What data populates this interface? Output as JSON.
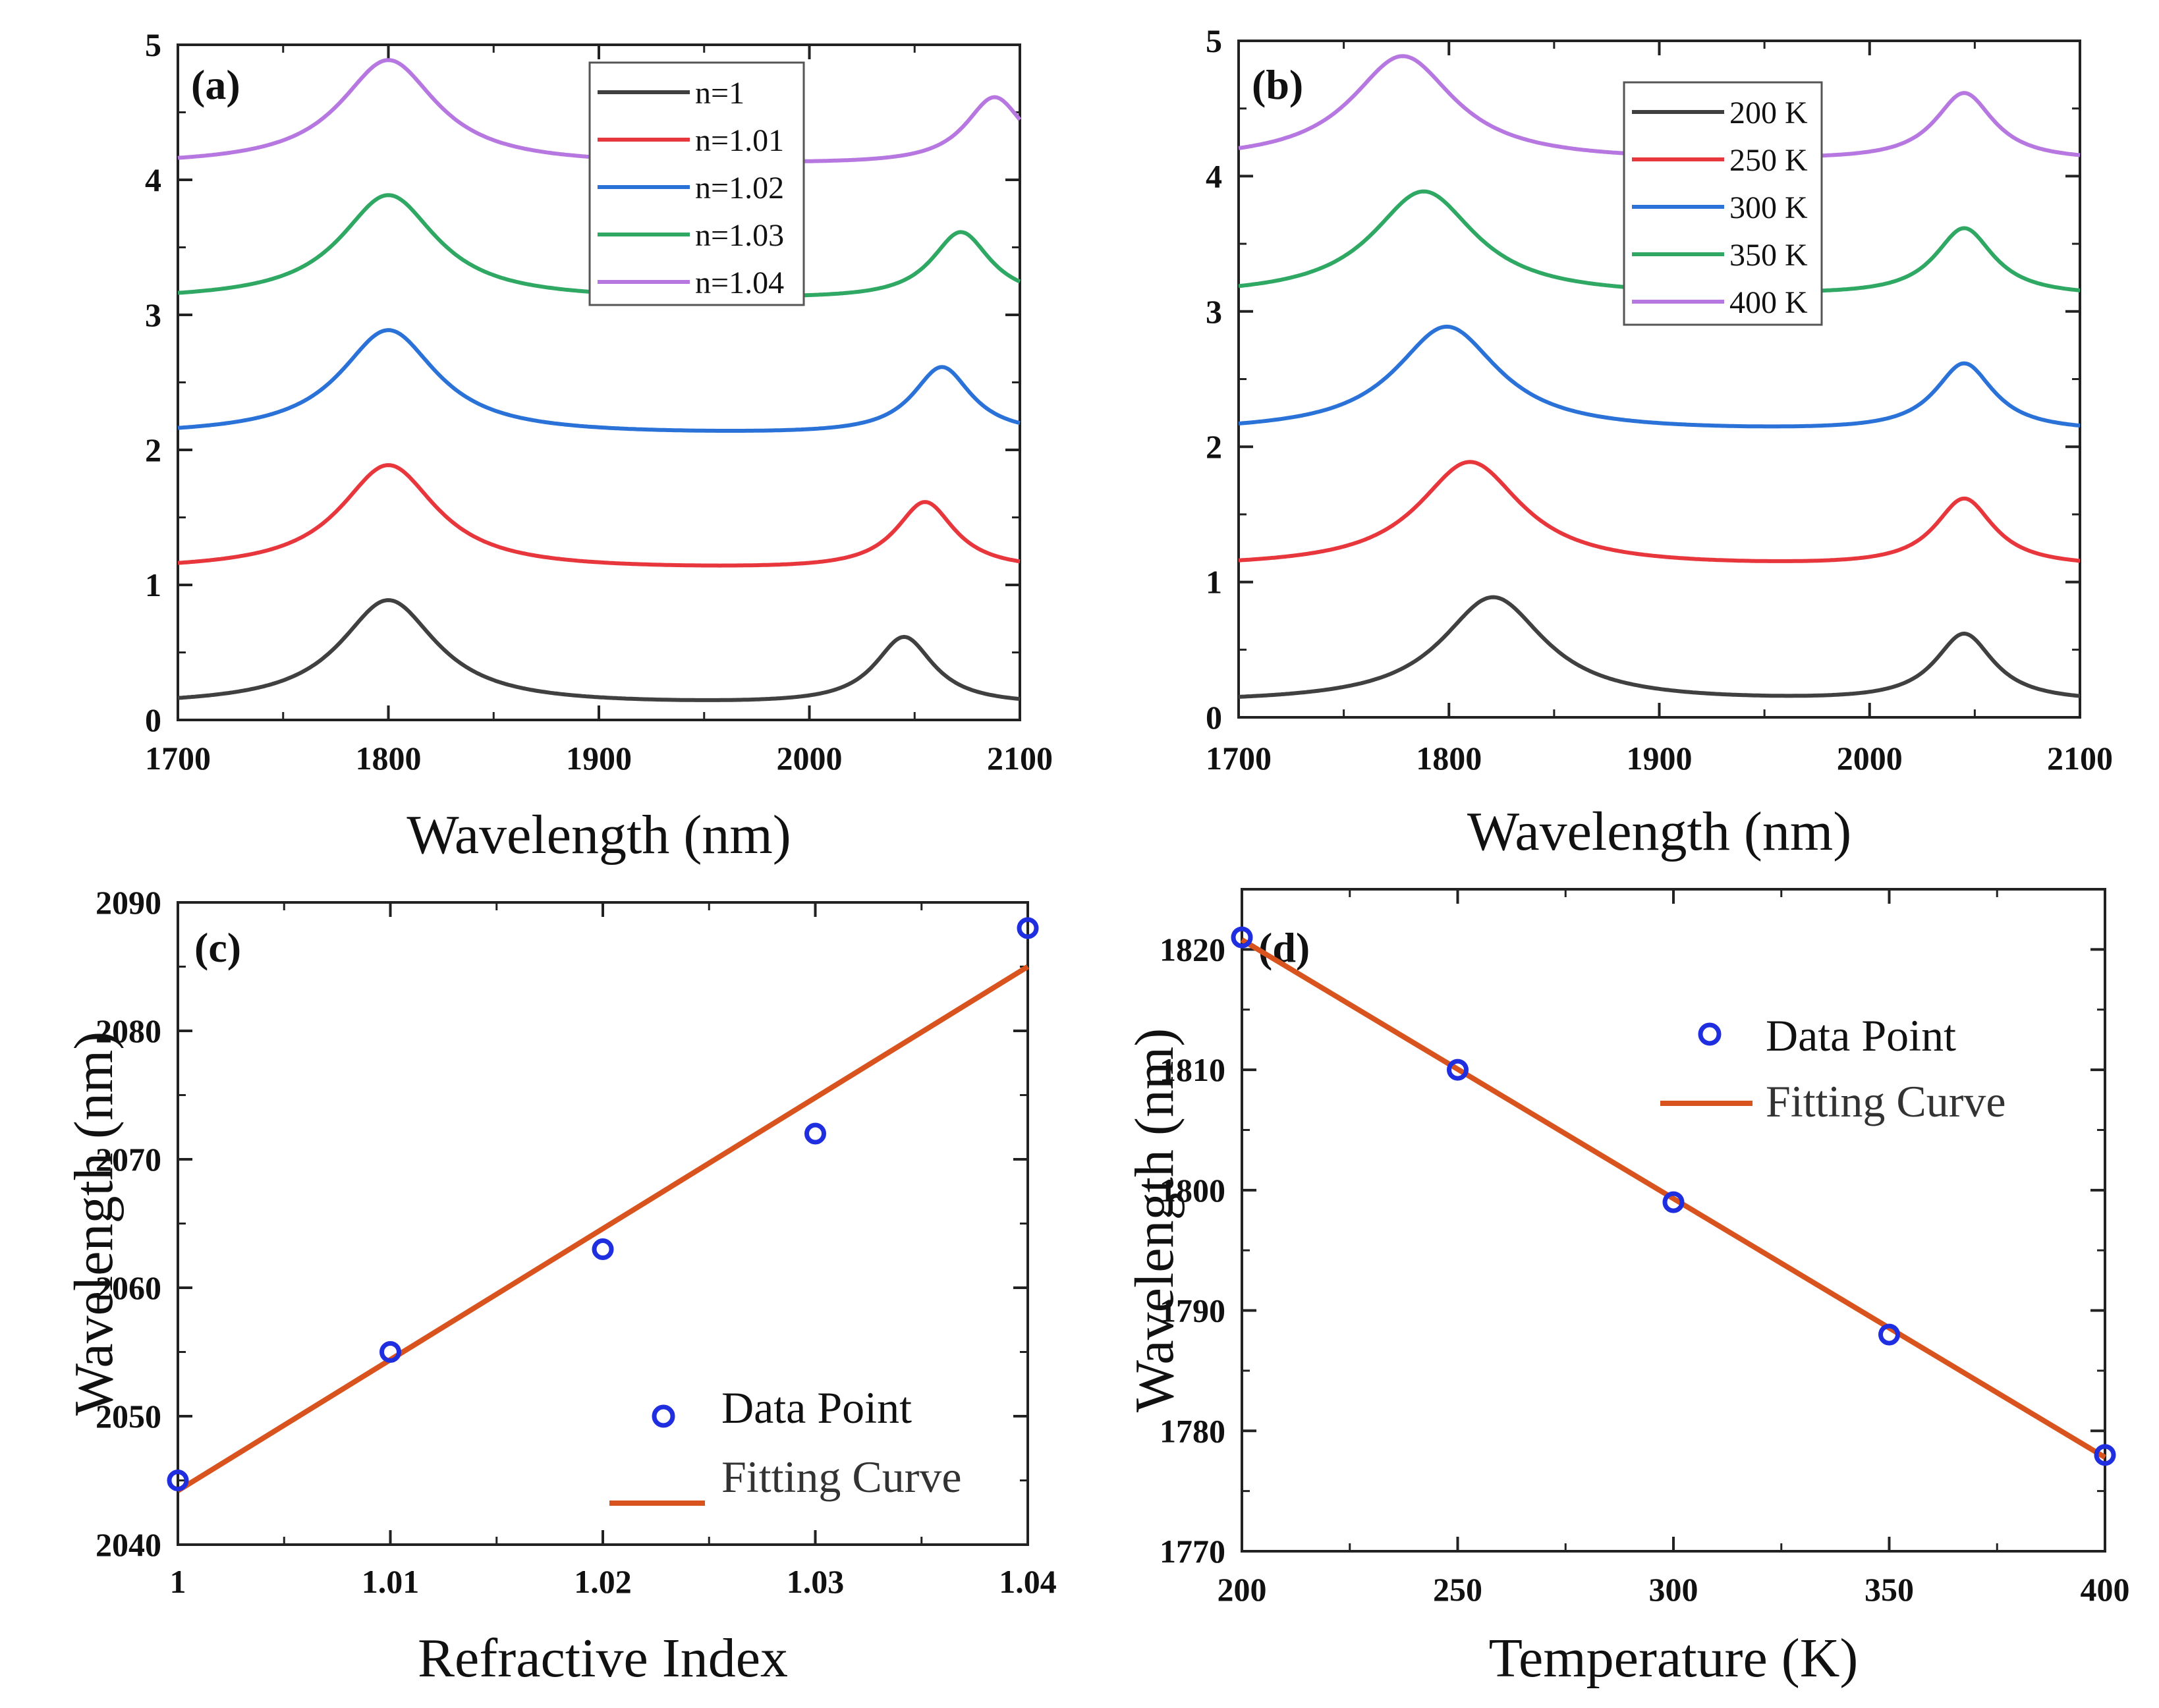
{
  "chart_data": [
    {
      "panel": "(a)",
      "type": "line",
      "xlabel": "Wavelength (nm)",
      "ylabel": "",
      "xlim": [
        1700,
        2100
      ],
      "ylim": [
        0,
        5
      ],
      "x_ticks": [
        "1700",
        "1800",
        "1900",
        "2000",
        "2100"
      ],
      "y_ticks": [
        "0",
        "1",
        "2",
        "3",
        "4",
        "5"
      ],
      "legend_position": "top-right",
      "series": [
        {
          "name": "n=1",
          "color": "#404040",
          "offset": 0,
          "peak1": {
            "x": 1800,
            "amp": 0.78,
            "width": 28
          },
          "peak2": {
            "x": 2045,
            "amp": 0.5,
            "width": 17
          },
          "base": 0.105
        },
        {
          "name": "n=1.01",
          "color": "#e8373c",
          "offset": 1,
          "peak1": {
            "x": 1800,
            "amp": 0.78,
            "width": 28
          },
          "peak2": {
            "x": 2055,
            "amp": 0.5,
            "width": 17
          },
          "base": 0.105
        },
        {
          "name": "n=1.02",
          "color": "#2a72d8",
          "offset": 2,
          "peak1": {
            "x": 1800,
            "amp": 0.78,
            "width": 28
          },
          "peak2": {
            "x": 2063,
            "amp": 0.5,
            "width": 17
          },
          "base": 0.105
        },
        {
          "name": "n=1.03",
          "color": "#2fa864",
          "offset": 3,
          "peak1": {
            "x": 1800,
            "amp": 0.78,
            "width": 28
          },
          "peak2": {
            "x": 2072,
            "amp": 0.5,
            "width": 17
          },
          "base": 0.105
        },
        {
          "name": "n=1.04",
          "color": "#b678e0",
          "offset": 4,
          "peak1": {
            "x": 1800,
            "amp": 0.78,
            "width": 28
          },
          "peak2": {
            "x": 2088,
            "amp": 0.5,
            "width": 17
          },
          "base": 0.105
        }
      ]
    },
    {
      "panel": "(b)",
      "type": "line",
      "xlabel": "Wavelength (nm)",
      "ylabel": "",
      "xlim": [
        1700,
        2100
      ],
      "ylim": [
        0,
        5
      ],
      "x_ticks": [
        "1700",
        "1800",
        "1900",
        "2000",
        "2100"
      ],
      "y_ticks": [
        "0",
        "1",
        "2",
        "3",
        "4",
        "5"
      ],
      "legend_position": "top-center",
      "series": [
        {
          "name": "200 K",
          "color": "#404040",
          "offset": 0,
          "peak1": {
            "x": 1821,
            "amp": 0.78,
            "width": 30
          },
          "peak2": {
            "x": 2045,
            "amp": 0.5,
            "width": 17
          },
          "base": 0.105
        },
        {
          "name": "250 K",
          "color": "#e8373c",
          "offset": 1,
          "peak1": {
            "x": 1810,
            "amp": 0.78,
            "width": 30
          },
          "peak2": {
            "x": 2045,
            "amp": 0.5,
            "width": 17
          },
          "base": 0.105
        },
        {
          "name": "300 K",
          "color": "#2a72d8",
          "offset": 2,
          "peak1": {
            "x": 1799,
            "amp": 0.78,
            "width": 30
          },
          "peak2": {
            "x": 2045,
            "amp": 0.5,
            "width": 17
          },
          "base": 0.105
        },
        {
          "name": "350 K",
          "color": "#2fa864",
          "offset": 3,
          "peak1": {
            "x": 1788,
            "amp": 0.78,
            "width": 30
          },
          "peak2": {
            "x": 2045,
            "amp": 0.5,
            "width": 17
          },
          "base": 0.105
        },
        {
          "name": "400 K",
          "color": "#b678e0",
          "offset": 4,
          "peak1": {
            "x": 1778,
            "amp": 0.78,
            "width": 30
          },
          "peak2": {
            "x": 2045,
            "amp": 0.5,
            "width": 17
          },
          "base": 0.105
        }
      ]
    },
    {
      "panel": "(c)",
      "type": "scatter",
      "xlabel": "Refractive Index",
      "ylabel": "Wavelength (nm)",
      "xlim": [
        1.0,
        1.04
      ],
      "ylim": [
        2040,
        2090
      ],
      "x_ticks": [
        "1",
        "1.01",
        "1.02",
        "1.03",
        "1.04"
      ],
      "y_ticks": [
        "2040",
        "2050",
        "2060",
        "2070",
        "2080",
        "2090"
      ],
      "legend_position": "bottom-right",
      "points": {
        "name": "Data Point",
        "color": "#1f2fe0",
        "x": [
          1.0,
          1.01,
          1.02,
          1.03,
          1.04
        ],
        "y": [
          2045,
          2055,
          2063,
          2072,
          2088
        ]
      },
      "fit": {
        "name": "Fitting Curve",
        "color": "#d9531e",
        "x": [
          1.0,
          1.04
        ],
        "y": [
          2044.2,
          2085.0
        ]
      }
    },
    {
      "panel": "(d)",
      "type": "scatter",
      "xlabel": "Temperature (K)",
      "ylabel": "Wavelength (nm)",
      "xlim": [
        200,
        400
      ],
      "ylim": [
        1770,
        1825
      ],
      "x_ticks": [
        "200",
        "250",
        "300",
        "350",
        "400"
      ],
      "y_ticks": [
        "1770",
        "1780",
        "1790",
        "1800",
        "1810",
        "1820"
      ],
      "legend_position": "top-right",
      "points": {
        "name": "Data Point",
        "color": "#1f2fe0",
        "x": [
          200,
          250,
          300,
          350,
          400
        ],
        "y": [
          1821,
          1810,
          1799,
          1788,
          1778
        ]
      },
      "fit": {
        "name": "Fitting Curve",
        "color": "#d9531e",
        "x": [
          200,
          400
        ],
        "y": [
          1820.8,
          1777.8
        ]
      }
    }
  ]
}
